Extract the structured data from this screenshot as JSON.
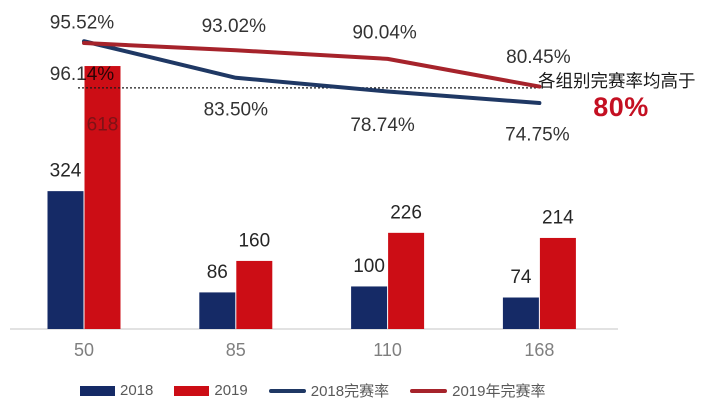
{
  "chart_data": {
    "type": "combo-bar-line",
    "categories": [
      "50",
      "85",
      "110",
      "168"
    ],
    "bar_series": [
      {
        "name": "2018",
        "color": "#152a66",
        "values": [
          324,
          86,
          100,
          74
        ]
      },
      {
        "name": "2019",
        "color": "#cc0d15",
        "values": [
          618,
          160,
          226,
          214
        ]
      }
    ],
    "line_series": [
      {
        "name": "2018完赛率",
        "color": "#1f3864",
        "values": [
          96.14,
          83.5,
          78.74,
          74.75
        ]
      },
      {
        "name": "2019年完赛率",
        "color": "#a6232b",
        "values": [
          95.52,
          93.02,
          90.04,
          80.45
        ]
      }
    ],
    "reference_line": {
      "value": 80,
      "style": "dotted",
      "color": "#1a1a1a"
    },
    "title": "",
    "xlabel": "",
    "ylabel": "",
    "ylim_bars": [
      0,
      700
    ],
    "ylim_pct": [
      70,
      100
    ],
    "grid": false,
    "legend_position": "bottom"
  },
  "annotation": {
    "line1": "各组别完赛率均高于",
    "line2": "80%",
    "highlight_color": "#c41022"
  },
  "colors": {
    "axis_line": "#d9d9d9",
    "bar_label": "#262626",
    "inside_bar_label": "#7d1216",
    "pct_label": "#333333",
    "category_label": "#7f7f7f",
    "legend_text": "#595959",
    "background": "#ffffff"
  }
}
